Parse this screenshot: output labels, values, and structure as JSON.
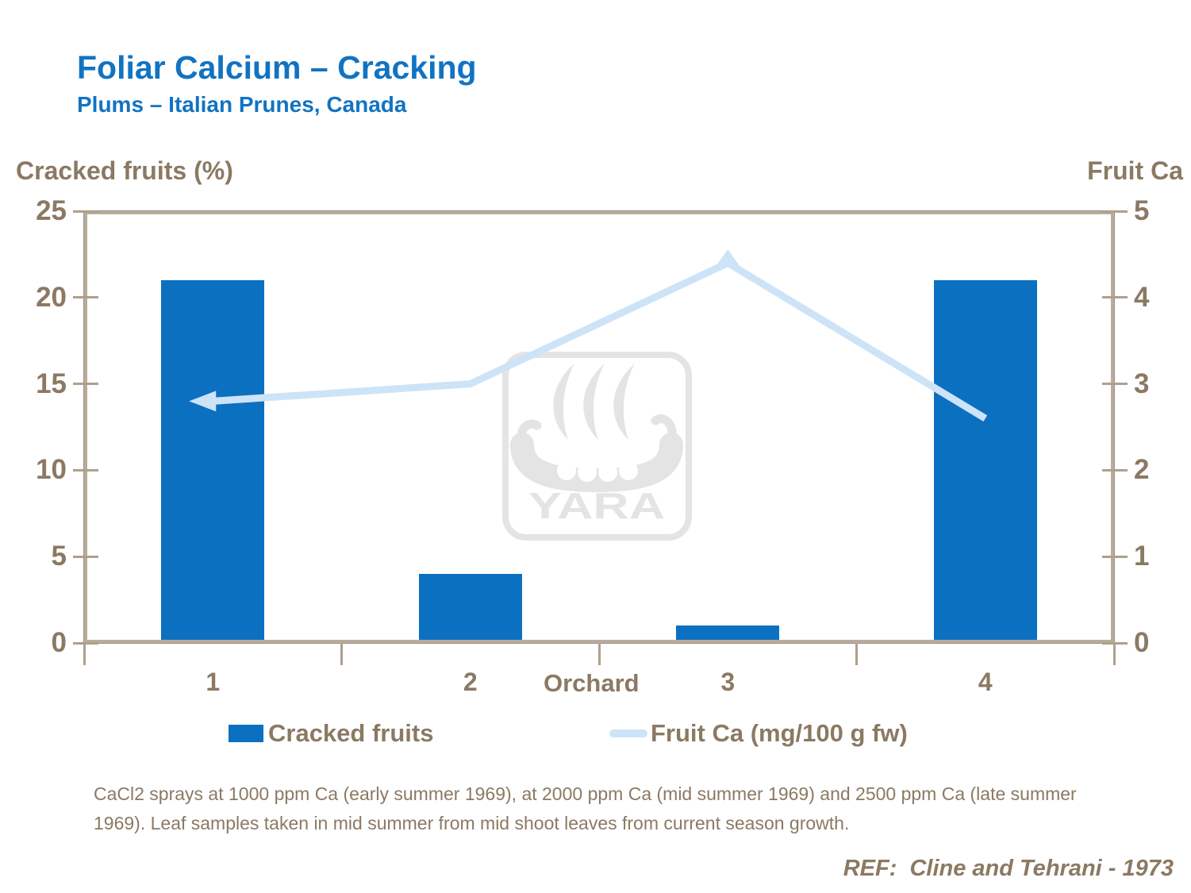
{
  "header": {
    "title": "Foliar Calcium – Cracking",
    "subtitle": "Plums – Italian Prunes, Canada"
  },
  "chart_data": {
    "type": "combo",
    "categories": [
      "1",
      "2",
      "3",
      "4"
    ],
    "series": [
      {
        "name": "Cracked fruits",
        "type": "bar",
        "axis": "left",
        "values": [
          21,
          4,
          1,
          21
        ]
      },
      {
        "name": "Fruit Ca (mg/100 g fw)",
        "type": "line",
        "axis": "right",
        "values": [
          2.8,
          3.0,
          4.4,
          2.6
        ]
      }
    ],
    "xlabel": "Orchard",
    "left_axis": {
      "label": "Cracked fruits (%)",
      "min": 0,
      "max": 25,
      "ticks": [
        0,
        5,
        10,
        15,
        20,
        25
      ]
    },
    "right_axis": {
      "label": "Fruit Ca",
      "min": 0,
      "max": 5,
      "ticks": [
        0,
        1,
        2,
        3,
        4,
        5
      ]
    },
    "legend_position": "bottom",
    "grid": false
  },
  "footnote": {
    "text": "CaCl2 sprays at 1000 ppm Ca (early summer 1969), at 2000 ppm Ca (mid summer 1969) and 2500 ppm Ca (late summer 1969). Leaf samples taken in mid summer from mid shoot leaves from current season growth."
  },
  "reference": {
    "text": "REF:  Cline and Tehrani - 1973"
  },
  "watermark": {
    "text": "YARA"
  },
  "colors": {
    "accent_blue": "#0C70C0",
    "title_blue": "#1173C2",
    "line_blue": "#CDE3F7",
    "taupe_text": "#8B7963",
    "axis_line": "#B9AC9C",
    "tick_line": "#AEA08D",
    "watermark_gray": "#E4E4E4"
  }
}
